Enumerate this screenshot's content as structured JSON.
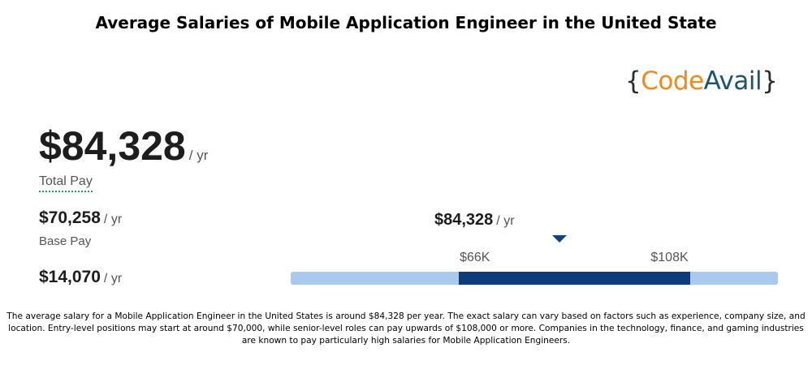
{
  "header": {
    "title": "Average Salaries of Mobile Application Engineer  in the United State"
  },
  "logo": {
    "left_brace": "{",
    "code": "Code",
    "avail": "Avail",
    "right_brace": "}"
  },
  "summary": {
    "total_pay": "$84,328",
    "total_unit": "/ yr",
    "total_label": "Total Pay",
    "base_pay": "$70,258",
    "base_unit": "/ yr",
    "base_label": "Base Pay",
    "additional_pay": "$14,070",
    "additional_unit": "/ yr"
  },
  "chart_data": {
    "type": "bar",
    "title": "",
    "median_label": "$84,328",
    "median_unit": "/ yr",
    "median": 84328,
    "range_low_label": "$66K",
    "range_high_label": "$108K",
    "range_low": 66000,
    "range_high": 108000,
    "axis_min": 35500,
    "axis_max": 124000
  },
  "description": "The average salary for a Mobile Application Engineer in the United States is around $84,328 per year. The exact salary can vary based on factors such as experience, company size, and location. Entry-level positions may start at around $70,000, while senior-level roles can pay upwards of $108,000 or more. Companies in the technology, finance, and gaming industries are known to pay particularly high salaries for Mobile Application Engineers.",
  "colors": {
    "track": "#a9c9ef",
    "range": "#0d3b7c",
    "pointer": "#16407e",
    "logo_orange": "#f08a1c",
    "logo_teal": "#1a5672"
  }
}
